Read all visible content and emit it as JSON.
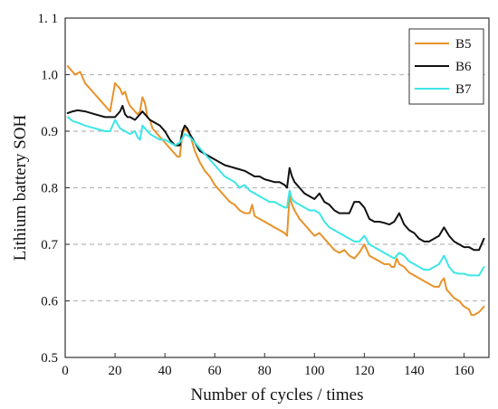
{
  "chart_data": {
    "type": "line",
    "title": "",
    "xlabel": "Number of cycles / times",
    "ylabel": "Lithium battery SOH",
    "xlim": [
      0,
      170
    ],
    "ylim": [
      0.5,
      1.1
    ],
    "xticks": [
      0,
      20,
      40,
      60,
      80,
      100,
      120,
      140,
      160
    ],
    "yticks": [
      0.5,
      0.6,
      0.7,
      0.8,
      0.9,
      1.0,
      1.1
    ],
    "xtick_labels": [
      "0",
      "20",
      "40",
      "60",
      "80",
      "100",
      "120",
      "140",
      "160"
    ],
    "ytick_labels": [
      "0.5",
      "0.6",
      "0.7",
      "0.8",
      "0.9",
      "1.0",
      "1. 1"
    ],
    "grid": "horizontal dashed",
    "legend_position": "top-right",
    "series": [
      {
        "name": "B5",
        "color": "#e8922a",
        "x": [
          1,
          2,
          4,
          6,
          8,
          10,
          12,
          14,
          16,
          18,
          19,
          20,
          21,
          22,
          23,
          24,
          25,
          26,
          27,
          28,
          29,
          30,
          31,
          32,
          33,
          34,
          35,
          36,
          38,
          40,
          42,
          44,
          45,
          46,
          47,
          48,
          49,
          50,
          52,
          54,
          56,
          58,
          60,
          62,
          64,
          66,
          68,
          70,
          72,
          74,
          75,
          76,
          78,
          80,
          82,
          84,
          86,
          88,
          89,
          90,
          91,
          92,
          94,
          96,
          98,
          100,
          102,
          104,
          106,
          108,
          110,
          112,
          114,
          116,
          118,
          120,
          122,
          124,
          126,
          128,
          130,
          131,
          132,
          133,
          134,
          136,
          138,
          140,
          142,
          144,
          146,
          148,
          150,
          151,
          152,
          153,
          154,
          156,
          158,
          160,
          162,
          163,
          164,
          166,
          168
        ],
        "y": [
          1.015,
          1.01,
          1.0,
          1.005,
          0.985,
          0.975,
          0.965,
          0.955,
          0.945,
          0.935,
          0.96,
          0.985,
          0.98,
          0.975,
          0.965,
          0.97,
          0.955,
          0.945,
          0.94,
          0.935,
          0.93,
          0.935,
          0.96,
          0.95,
          0.925,
          0.92,
          0.905,
          0.9,
          0.89,
          0.88,
          0.87,
          0.86,
          0.855,
          0.855,
          0.895,
          0.905,
          0.9,
          0.895,
          0.865,
          0.845,
          0.83,
          0.82,
          0.805,
          0.795,
          0.785,
          0.775,
          0.77,
          0.76,
          0.755,
          0.755,
          0.77,
          0.75,
          0.745,
          0.74,
          0.735,
          0.73,
          0.725,
          0.72,
          0.715,
          0.785,
          0.77,
          0.76,
          0.745,
          0.735,
          0.725,
          0.715,
          0.72,
          0.71,
          0.7,
          0.69,
          0.685,
          0.69,
          0.68,
          0.675,
          0.685,
          0.7,
          0.68,
          0.675,
          0.67,
          0.665,
          0.665,
          0.66,
          0.66,
          0.675,
          0.665,
          0.66,
          0.65,
          0.645,
          0.64,
          0.635,
          0.63,
          0.625,
          0.625,
          0.635,
          0.64,
          0.62,
          0.615,
          0.605,
          0.6,
          0.59,
          0.585,
          0.575,
          0.575,
          0.58,
          0.59
        ]
      },
      {
        "name": "B6",
        "color": "#111111",
        "x": [
          1,
          3,
          5,
          8,
          12,
          16,
          20,
          22,
          23,
          24,
          25,
          26,
          28,
          30,
          31,
          32,
          34,
          36,
          38,
          40,
          42,
          44,
          46,
          47,
          48,
          49,
          50,
          52,
          54,
          56,
          58,
          60,
          64,
          68,
          72,
          76,
          78,
          80,
          84,
          86,
          88,
          89,
          90,
          91,
          92,
          94,
          96,
          98,
          100,
          102,
          104,
          106,
          108,
          110,
          114,
          116,
          118,
          120,
          122,
          124,
          126,
          128,
          130,
          132,
          134,
          136,
          138,
          140,
          142,
          144,
          146,
          148,
          150,
          152,
          154,
          156,
          158,
          160,
          162,
          164,
          166,
          168
        ],
        "y": [
          0.932,
          0.935,
          0.937,
          0.935,
          0.93,
          0.925,
          0.925,
          0.935,
          0.945,
          0.93,
          0.925,
          0.925,
          0.92,
          0.93,
          0.935,
          0.93,
          0.92,
          0.915,
          0.91,
          0.9,
          0.885,
          0.875,
          0.875,
          0.9,
          0.91,
          0.905,
          0.895,
          0.88,
          0.865,
          0.86,
          0.855,
          0.85,
          0.84,
          0.835,
          0.83,
          0.82,
          0.82,
          0.815,
          0.81,
          0.81,
          0.805,
          0.8,
          0.835,
          0.82,
          0.81,
          0.8,
          0.79,
          0.785,
          0.78,
          0.79,
          0.775,
          0.77,
          0.76,
          0.755,
          0.755,
          0.775,
          0.775,
          0.765,
          0.745,
          0.74,
          0.74,
          0.738,
          0.735,
          0.74,
          0.755,
          0.735,
          0.725,
          0.72,
          0.71,
          0.705,
          0.705,
          0.71,
          0.715,
          0.73,
          0.715,
          0.705,
          0.7,
          0.695,
          0.695,
          0.69,
          0.69,
          0.71
        ]
      },
      {
        "name": "B7",
        "color": "#3de6e6",
        "x": [
          1,
          3,
          5,
          8,
          12,
          16,
          18,
          20,
          22,
          24,
          26,
          28,
          29,
          30,
          31,
          32,
          34,
          36,
          38,
          40,
          42,
          44,
          46,
          48,
          50,
          52,
          54,
          56,
          58,
          60,
          62,
          64,
          66,
          68,
          70,
          72,
          74,
          76,
          78,
          80,
          82,
          84,
          86,
          88,
          89,
          90,
          91,
          92,
          94,
          96,
          98,
          100,
          102,
          104,
          106,
          108,
          110,
          112,
          114,
          116,
          118,
          120,
          122,
          124,
          126,
          128,
          130,
          132,
          134,
          136,
          138,
          140,
          142,
          144,
          146,
          148,
          150,
          152,
          154,
          156,
          158,
          160,
          162,
          164,
          166,
          168
        ],
        "y": [
          0.925,
          0.918,
          0.915,
          0.91,
          0.905,
          0.9,
          0.9,
          0.92,
          0.905,
          0.9,
          0.895,
          0.9,
          0.89,
          0.885,
          0.91,
          0.905,
          0.895,
          0.89,
          0.885,
          0.885,
          0.88,
          0.875,
          0.88,
          0.895,
          0.89,
          0.88,
          0.87,
          0.86,
          0.85,
          0.84,
          0.83,
          0.82,
          0.815,
          0.81,
          0.8,
          0.805,
          0.795,
          0.79,
          0.785,
          0.78,
          0.775,
          0.775,
          0.77,
          0.765,
          0.765,
          0.795,
          0.78,
          0.775,
          0.77,
          0.765,
          0.76,
          0.76,
          0.755,
          0.74,
          0.73,
          0.725,
          0.72,
          0.715,
          0.71,
          0.705,
          0.705,
          0.715,
          0.7,
          0.695,
          0.69,
          0.685,
          0.68,
          0.675,
          0.685,
          0.68,
          0.67,
          0.665,
          0.66,
          0.655,
          0.655,
          0.66,
          0.665,
          0.68,
          0.66,
          0.65,
          0.648,
          0.648,
          0.645,
          0.645,
          0.645,
          0.66
        ]
      }
    ]
  }
}
